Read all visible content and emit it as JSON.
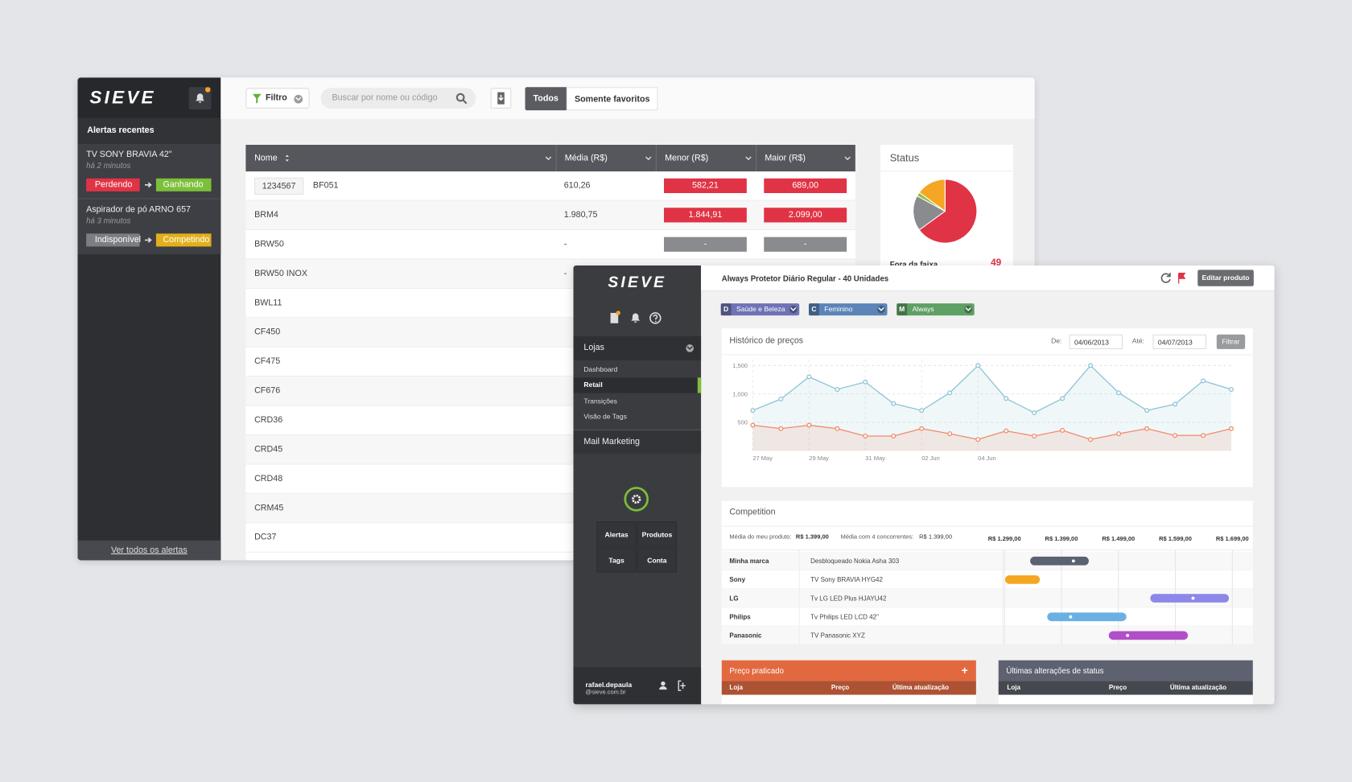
{
  "back_app": {
    "logo": "SIEVE",
    "sidebar": {
      "heading": "Alertas recentes",
      "alerts": [
        {
          "product": "TV SONY BRAVIA 42\"",
          "time": "há 2 minutos",
          "from": "Perdendo",
          "from_color": "#e03345",
          "to": "Ganhando",
          "to_color": "#7cbf3a"
        },
        {
          "product": "Aspirador de pó ARNO 657",
          "time": "há 3 minutos",
          "from": "Indisponível",
          "from_color": "#7d7e83",
          "to": "Competindo",
          "to_color": "#e1b01b"
        }
      ],
      "footer_link": "Ver todos os alertas"
    },
    "toolbar": {
      "filter": "Filtro",
      "search_placeholder": "Buscar por nome ou código",
      "tabs": [
        "Todos",
        "Somente favoritos"
      ]
    },
    "table": {
      "columns": [
        "Nome",
        "Média (R$)",
        "Menor (R$)",
        "Maior (R$)"
      ],
      "rows": [
        {
          "code": "1234567",
          "name": "BF051",
          "avg": "610,26",
          "low": "582,21",
          "high": "689,00"
        },
        {
          "name": "BRM4",
          "avg": "1.980,75",
          "low": "1.844,91",
          "high": "2.099,00"
        },
        {
          "name": "BRW50",
          "avg": "-",
          "low": "-",
          "high": "-"
        },
        {
          "name": "BRW50 INOX",
          "avg": "-"
        },
        {
          "name": "BWL11"
        },
        {
          "name": "CF450"
        },
        {
          "name": "CF475"
        },
        {
          "name": "CF676"
        },
        {
          "name": "CRD36"
        },
        {
          "name": "CRD45"
        },
        {
          "name": "CRD48"
        },
        {
          "name": "CRM45"
        },
        {
          "name": "DC37"
        }
      ]
    },
    "status": {
      "title": "Status",
      "slices": [
        {
          "value": 65,
          "color": "#e03345"
        },
        {
          "value": 18,
          "color": "#8a8b8f"
        },
        {
          "value": 2,
          "color": "#8cc43f"
        },
        {
          "value": 15,
          "color": "#f5a623"
        }
      ],
      "legend_label": "Fora da faixa",
      "legend_value": 49
    }
  },
  "front_app": {
    "logo": "SIEVE",
    "menu": {
      "section": "Lojas",
      "items": [
        "Dashboard",
        "Retail",
        "Transições",
        "Visão de Tags"
      ],
      "active": 1,
      "section2": "Mail Marketing"
    },
    "shortcuts": [
      "Alertas",
      "Produtos",
      "Tags",
      "Conta"
    ],
    "user": {
      "name": "rafael.depaula",
      "email": "@sieve.com.br"
    },
    "header": {
      "title": "Always Protetor Diário Regular - 40 Unidades",
      "button": "Editar produto"
    },
    "tags": [
      {
        "letter": "D",
        "label": "Saúde e Beleza",
        "color": "#6f72b4"
      },
      {
        "letter": "C",
        "label": "Feminino",
        "color": "#5b84b8"
      },
      {
        "letter": "M",
        "label": "Always",
        "color": "#5fa065"
      }
    ],
    "price_history": {
      "title": "Histórico de preços",
      "from_label": "De:",
      "from": "04/06/2013",
      "to_label": "Até:",
      "to": "04/07/2013",
      "button": "Filtrar",
      "chart": {
        "type": "line",
        "categories": [
          "27 May",
          null,
          "29 May",
          null,
          "31 May",
          null,
          "02 Jun",
          null,
          "04 Jun",
          null,
          null,
          null,
          null,
          null,
          null,
          null,
          null,
          null
        ],
        "series": [
          {
            "color": "#8ec3d6",
            "values": [
              710,
              910,
              1300,
              1080,
              1210,
              830,
              710,
              1020,
              1500,
              920,
              670,
              920,
              1500,
              1020,
              710,
              820,
              1230,
              1080
            ]
          },
          {
            "color": "#f08a6a",
            "values": [
              450,
              390,
              450,
              390,
              260,
              260,
              390,
              300,
              200,
              350,
              260,
              360,
              200,
              300,
              390,
              270,
              270,
              390
            ]
          }
        ],
        "ylim": [
          0,
          1600
        ],
        "yticks": [
          500,
          {
            "value": 1000,
            "label": "1,000"
          },
          {
            "value": 1500,
            "label": "1,500"
          }
        ]
      }
    },
    "competition": {
      "title": "Competition",
      "my_avg_label": "Média do meu produto:",
      "my_avg": "R$ 1.399,00",
      "comp_avg_label": "Média com 4 concorrentes:",
      "comp_avg": "R$ 1.399,00",
      "xlim": [
        1299,
        1735
      ],
      "xticks": [
        {
          "value": 1299,
          "label": "R$ 1.299,00"
        },
        {
          "value": 1399,
          "label": "R$ 1.399,00"
        },
        {
          "value": 1499,
          "label": "R$ 1.499,00"
        },
        {
          "value": 1599,
          "label": "R$ 1.599,00"
        },
        {
          "value": 1699,
          "label": "R$ 1.699,00"
        }
      ],
      "rows": [
        {
          "brand": "Minha marca",
          "product": "Desbloqueado Nokia Asha 303",
          "min": 1344,
          "max": 1447,
          "point": 1420,
          "color": "#5b6272"
        },
        {
          "brand": "Sony",
          "product": "TV Sony BRAVIA HYG42",
          "min": 1300,
          "max": 1361,
          "color": "#f5a623"
        },
        {
          "brand": "LG",
          "product": "Tv LG LED Plus HJAYU42",
          "min": 1555,
          "max": 1693,
          "point": 1630,
          "color": "#8c87e8"
        },
        {
          "brand": "Philips",
          "product": "Tv Philips LED LCD 42\"",
          "min": 1374,
          "max": 1513,
          "point": 1415,
          "color": "#6ab0e4"
        },
        {
          "brand": "Panasonic",
          "product": "TV Panasonic XYZ",
          "min": 1482,
          "max": 1621,
          "point": 1515,
          "color": "#b04fc8"
        }
      ]
    },
    "bottom_panels": [
      {
        "title": "Preço praticado",
        "action": "+",
        "columns": [
          "Loja",
          "Preço",
          "Última atualização"
        ],
        "color": "#e2693f",
        "header_color": "#ad5334"
      },
      {
        "title": "Últimas alterações de status",
        "columns": [
          "Loja",
          "Preço",
          "Última atualização"
        ],
        "color": "#5e6170",
        "header_color": "#46484f"
      }
    ]
  }
}
